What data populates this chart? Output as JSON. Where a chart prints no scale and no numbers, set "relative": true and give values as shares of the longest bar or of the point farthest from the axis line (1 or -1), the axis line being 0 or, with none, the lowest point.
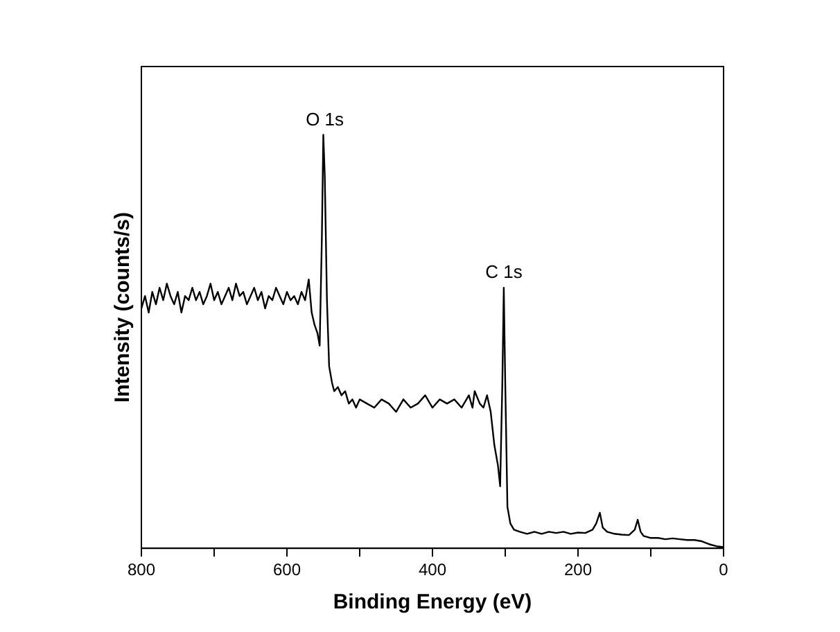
{
  "chart_data": {
    "type": "line",
    "xlabel": "Binding Energy (eV)",
    "ylabel": "Intensity (counts/s)",
    "relative": true,
    "xlim": [
      800,
      0
    ],
    "xticks": [
      800,
      {
        "value": 700,
        "label": null
      },
      600,
      {
        "value": 500,
        "label": null
      },
      400,
      {
        "value": 300,
        "label": null
      },
      200,
      {
        "value": 100,
        "label": null
      },
      0
    ],
    "grid": false,
    "legend": false,
    "marker": "none",
    "line_style": "solid",
    "annotations": [
      {
        "text": "O 1s",
        "x": 548,
        "y": 1.0
      },
      {
        "text": "C 1s",
        "x": 302,
        "y": 0.63
      }
    ],
    "x": [
      800,
      795,
      790,
      785,
      780,
      775,
      770,
      765,
      760,
      755,
      750,
      745,
      740,
      735,
      730,
      725,
      720,
      715,
      710,
      705,
      700,
      695,
      690,
      685,
      680,
      675,
      670,
      665,
      660,
      655,
      650,
      645,
      640,
      635,
      630,
      625,
      620,
      615,
      610,
      605,
      600,
      595,
      590,
      585,
      580,
      575,
      570,
      566,
      562,
      558,
      555,
      552,
      550,
      548,
      545,
      542,
      538,
      535,
      530,
      525,
      520,
      515,
      510,
      505,
      500,
      490,
      480,
      470,
      460,
      450,
      440,
      430,
      420,
      410,
      400,
      390,
      380,
      370,
      360,
      350,
      345,
      342,
      335,
      330,
      325,
      320,
      315,
      310,
      307,
      304,
      302,
      300,
      297,
      293,
      288,
      280,
      270,
      260,
      250,
      240,
      230,
      220,
      210,
      200,
      190,
      180,
      175,
      170,
      166,
      160,
      150,
      140,
      130,
      122,
      118,
      114,
      110,
      100,
      90,
      80,
      70,
      60,
      50,
      40,
      30,
      20,
      10,
      0
    ],
    "series": [
      {
        "color": "#000000",
        "values": [
          0.58,
          0.61,
          0.57,
          0.62,
          0.59,
          0.63,
          0.6,
          0.64,
          0.61,
          0.59,
          0.62,
          0.57,
          0.61,
          0.6,
          0.63,
          0.6,
          0.62,
          0.59,
          0.61,
          0.64,
          0.6,
          0.62,
          0.59,
          0.61,
          0.63,
          0.6,
          0.64,
          0.61,
          0.62,
          0.59,
          0.61,
          0.63,
          0.6,
          0.62,
          0.58,
          0.61,
          0.6,
          0.63,
          0.61,
          0.59,
          0.62,
          0.6,
          0.61,
          0.59,
          0.62,
          0.6,
          0.65,
          0.57,
          0.54,
          0.52,
          0.49,
          0.75,
          1.0,
          0.9,
          0.6,
          0.44,
          0.4,
          0.38,
          0.39,
          0.37,
          0.38,
          0.35,
          0.36,
          0.34,
          0.36,
          0.35,
          0.34,
          0.36,
          0.35,
          0.33,
          0.36,
          0.34,
          0.35,
          0.37,
          0.34,
          0.36,
          0.35,
          0.36,
          0.34,
          0.37,
          0.34,
          0.38,
          0.35,
          0.34,
          0.37,
          0.33,
          0.25,
          0.2,
          0.15,
          0.4,
          0.63,
          0.4,
          0.1,
          0.06,
          0.045,
          0.04,
          0.035,
          0.04,
          0.035,
          0.04,
          0.037,
          0.04,
          0.035,
          0.038,
          0.037,
          0.045,
          0.06,
          0.086,
          0.05,
          0.04,
          0.035,
          0.033,
          0.032,
          0.045,
          0.069,
          0.04,
          0.03,
          0.025,
          0.025,
          0.022,
          0.024,
          0.022,
          0.02,
          0.02,
          0.017,
          0.01,
          0.005,
          0.003
        ]
      }
    ]
  }
}
